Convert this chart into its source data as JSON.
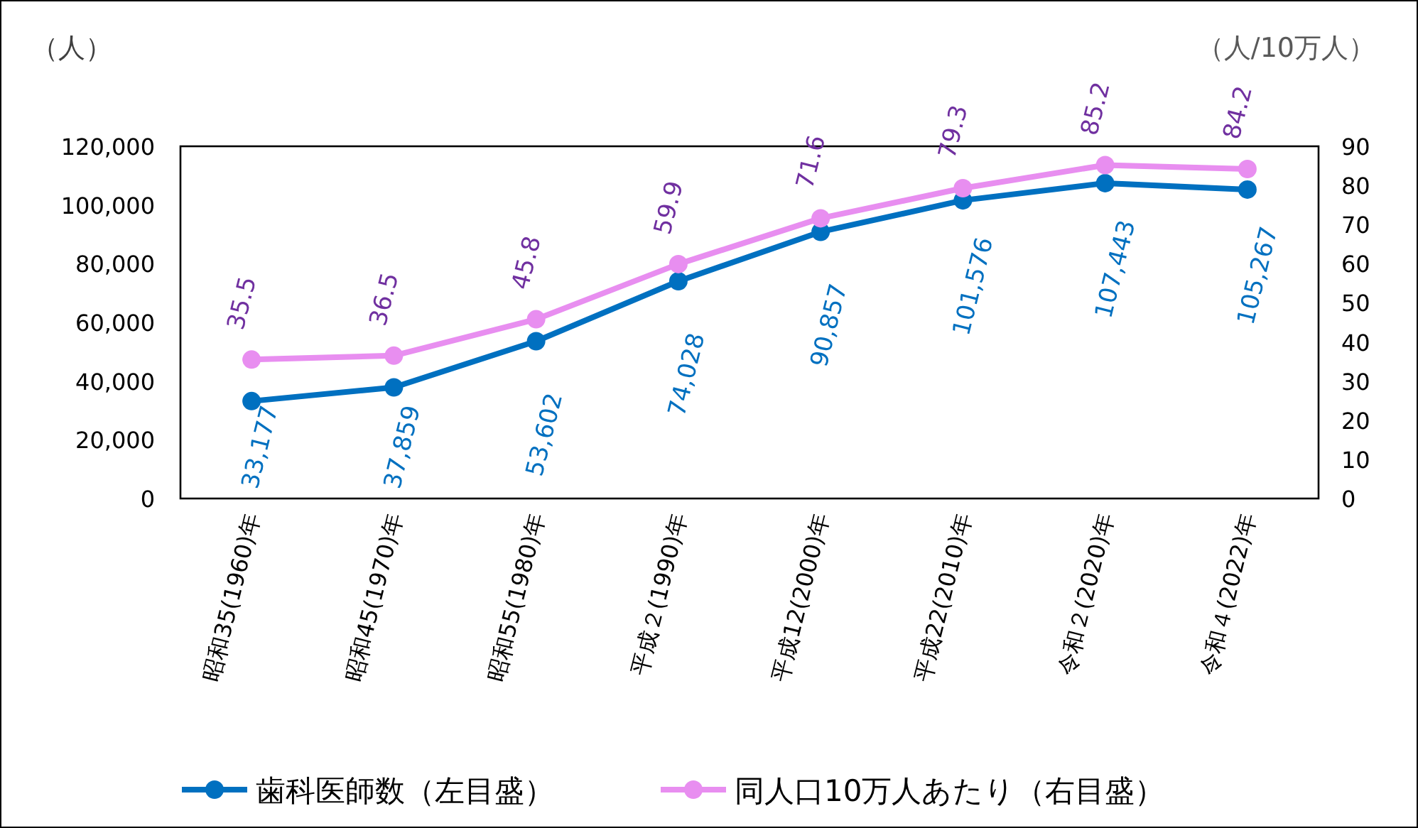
{
  "chart_data": {
    "type": "line",
    "ylabel": "（人）",
    "y2label": "（人/10万人）",
    "categories": [
      "昭和35(1960)年",
      "昭和45(1970)年",
      "昭和55(1980)年",
      "平成２(1990)年",
      "平成12(2000)年",
      "平成22(2010)年",
      "令和２(2020)年",
      "令和４(2022)年"
    ],
    "ylim": [
      0,
      120000
    ],
    "yticks": [
      0,
      {
        "value": 20000,
        "label": "20,000"
      },
      {
        "value": 40000,
        "label": "40,000"
      },
      {
        "value": 60000,
        "label": "60,000"
      },
      {
        "value": 80000,
        "label": "80,000"
      },
      {
        "value": 100000,
        "label": "100,000"
      },
      {
        "value": 120000,
        "label": "120,000"
      }
    ],
    "y2lim": [
      0,
      90
    ],
    "y2ticks": [
      0,
      10,
      20,
      30,
      40,
      50,
      60,
      70,
      80,
      90
    ],
    "series": [
      {
        "name": "歯科医師数（左目盛）",
        "color": "#0070c0",
        "values": [
          33177,
          37859,
          53602,
          74028,
          90857,
          101576,
          107443,
          105267
        ],
        "value_labels": [
          "33,177",
          "37,859",
          "53,602",
          "74,028",
          "90,857",
          "101,576",
          "107,443",
          "105,267"
        ]
      },
      {
        "name": "同人口10万人あたり（右目盛）",
        "color": "#e88ef0",
        "axis": "y2",
        "values": [
          35.5,
          36.5,
          45.8,
          59.9,
          71.6,
          79.3,
          85.2,
          84.2
        ]
      }
    ],
    "data_labels": true,
    "marker": "circle",
    "line_style": "solid",
    "grid": false,
    "legend": "bottom"
  }
}
